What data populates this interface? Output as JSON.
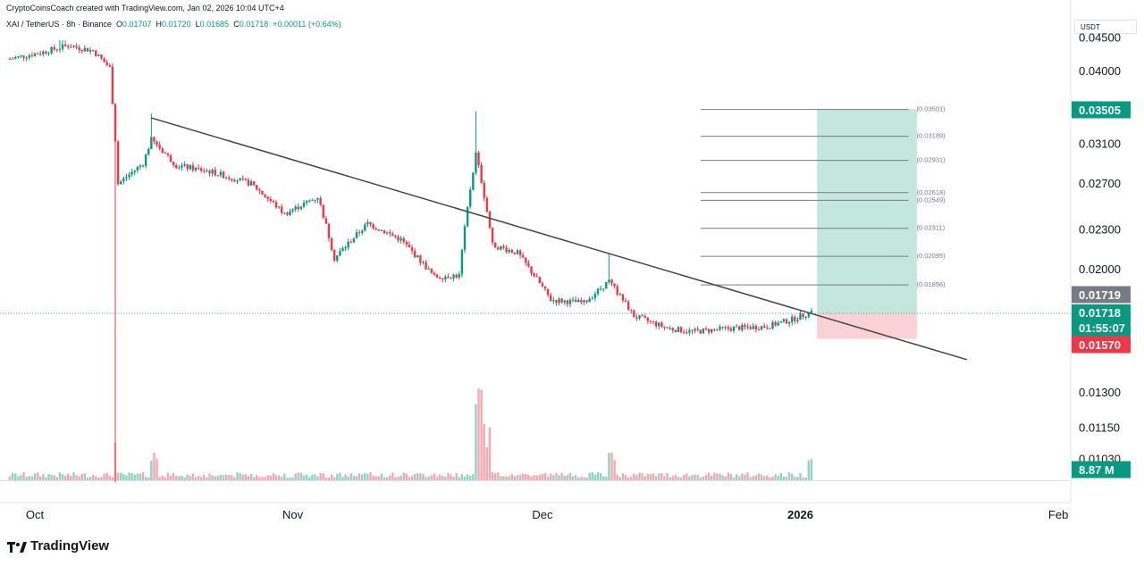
{
  "header": {
    "credit": "CryptoCoinsCoach created with TradingView.com, Jan 02, 2026 10:04 UTC+4",
    "symbol": "XAI / TetherUS · 8h · Binance",
    "ohlc_o_label": "O",
    "ohlc_o": "0.01707",
    "ohlc_h_label": "H",
    "ohlc_h": "0.01720",
    "ohlc_l_label": "L",
    "ohlc_l": "0.01685",
    "ohlc_c_label": "C",
    "ohlc_c": "0.01718",
    "change": "+0.00011 (+0.64%)"
  },
  "price_axis": {
    "unit": "USDT"
  },
  "brand": {
    "name": "TradingView"
  },
  "colors": {
    "up": "#089981",
    "down": "#f23645",
    "target_zone": "#b8e3d6",
    "stop_zone": "#f9c9cd",
    "trendline": "#444444",
    "fib": "#787b86"
  },
  "chart_data": {
    "type": "candlestick",
    "title": "XAI / TetherUS · 8h · Binance",
    "y_scale": "log",
    "y_ticks": [
      "0.04500",
      "0.04000",
      "0.03100",
      "0.02700",
      "0.02300",
      "0.02000",
      "0.01300",
      "0.01150",
      "0.01030"
    ],
    "x_ticks": [
      "Oct",
      "Nov",
      "Dec",
      "2026",
      "Feb"
    ],
    "grid": false,
    "series": [
      {
        "name": "XAI/USDT",
        "points": [
          {
            "date": "2025-09-28",
            "close": 0.0418
          },
          {
            "date": "2025-10-02",
            "close": 0.0428
          },
          {
            "date": "2025-10-05",
            "close": 0.0438
          },
          {
            "date": "2025-10-08",
            "close": 0.043
          },
          {
            "date": "2025-10-10",
            "close": 0.0405
          },
          {
            "date": "2025-10-11",
            "close": 0.027
          },
          {
            "date": "2025-10-14",
            "close": 0.029
          },
          {
            "date": "2025-10-15",
            "close": 0.0315
          },
          {
            "date": "2025-10-18",
            "close": 0.0288
          },
          {
            "date": "2025-10-22",
            "close": 0.0282
          },
          {
            "date": "2025-10-27",
            "close": 0.027
          },
          {
            "date": "2025-10-31",
            "close": 0.0243
          },
          {
            "date": "2025-11-04",
            "close": 0.0258
          },
          {
            "date": "2025-11-06",
            "close": 0.0208
          },
          {
            "date": "2025-11-10",
            "close": 0.0235
          },
          {
            "date": "2025-11-14",
            "close": 0.0222
          },
          {
            "date": "2025-11-18",
            "close": 0.0195
          },
          {
            "date": "2025-11-21",
            "close": 0.0196
          },
          {
            "date": "2025-11-23",
            "close": 0.03
          },
          {
            "date": "2025-11-25",
            "close": 0.0218
          },
          {
            "date": "2025-11-28",
            "close": 0.0212
          },
          {
            "date": "2025-12-02",
            "close": 0.018
          },
          {
            "date": "2025-12-06",
            "close": 0.0178
          },
          {
            "date": "2025-12-09",
            "close": 0.0192
          },
          {
            "date": "2025-12-12",
            "close": 0.017
          },
          {
            "date": "2025-12-16",
            "close": 0.0163
          },
          {
            "date": "2025-12-19",
            "close": 0.0161
          },
          {
            "date": "2025-12-24",
            "close": 0.0163
          },
          {
            "date": "2025-12-28",
            "close": 0.0164
          },
          {
            "date": "2025-12-31",
            "close": 0.0168
          },
          {
            "date": "2026-01-02",
            "close": 0.01718
          }
        ]
      }
    ],
    "volume_label": "8.87 M",
    "trendline": {
      "start": {
        "date": "2025-10-15",
        "price": 0.034
      },
      "end": {
        "date": "2026-01-21",
        "price": 0.0146
      }
    },
    "fib_levels": [
      "0.03501",
      "0.03189",
      "0.02931",
      "0.02618",
      "0.02549",
      "0.02311",
      "0.02095",
      "0.01896"
    ],
    "fib_values": [
      0.03501,
      0.03189,
      0.02931,
      0.02618,
      0.02549,
      0.02311,
      0.02095,
      0.01896
    ],
    "position": {
      "target": 0.03505,
      "entry": 0.01719,
      "stop": 0.0157
    },
    "price_badges": [
      {
        "label": "0.03505",
        "value": 0.03505,
        "color": "#089981"
      },
      {
        "label": "0.01719",
        "value": 0.01719,
        "color": "#787b86"
      },
      {
        "label": "0.01718",
        "value": 0.01718,
        "color": "#089981"
      },
      {
        "label": "01:55:07",
        "value": 0.01718,
        "color": "#089981"
      },
      {
        "label": "0.01570",
        "value": 0.0157,
        "color": "#f23645"
      },
      {
        "label": "8.87 M",
        "value": 0.0103,
        "color": "#089981"
      }
    ]
  }
}
